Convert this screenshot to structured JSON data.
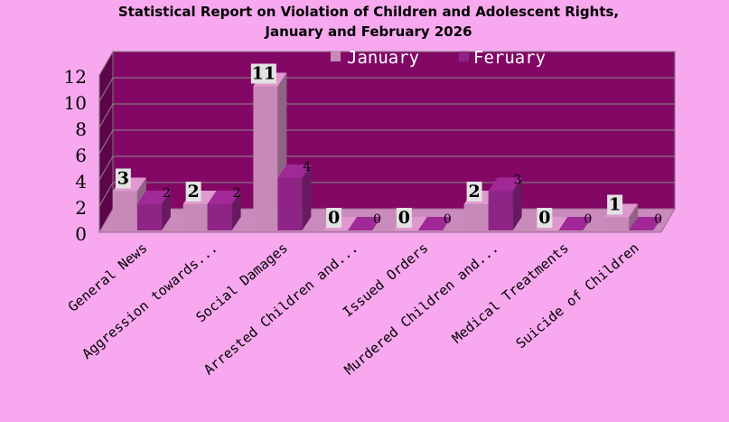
{
  "chart_data": {
    "type": "bar",
    "title_line1": "Statistical Report on Violation of Children and Adolescent Rights,",
    "title_line2": "January and February 2026",
    "categories": [
      "General News",
      "Aggression towards...",
      "Social Damages",
      "Arrested Children and...",
      "Issued Orders",
      "Murdered Children and...",
      "Medical Treatments",
      "Suicide of Children"
    ],
    "series": [
      {
        "name": "January",
        "values": [
          3,
          2,
          11,
          0,
          0,
          2,
          0,
          1
        ]
      },
      {
        "name": "Feruary",
        "values": [
          2,
          2,
          4,
          0,
          0,
          3,
          0,
          0
        ]
      }
    ],
    "ylim": [
      0,
      12
    ],
    "yticks": [
      0,
      2,
      4,
      6,
      8,
      10,
      12
    ],
    "grid": true,
    "legend_position": "top",
    "colors": {
      "background": "#f7a8ee",
      "plot_back": "#830866",
      "plot_side": "#5e044a",
      "floor": "#c98bbb",
      "january": "#c789b8",
      "february": "#8f2487",
      "label_box": "#e2e2e2"
    }
  }
}
